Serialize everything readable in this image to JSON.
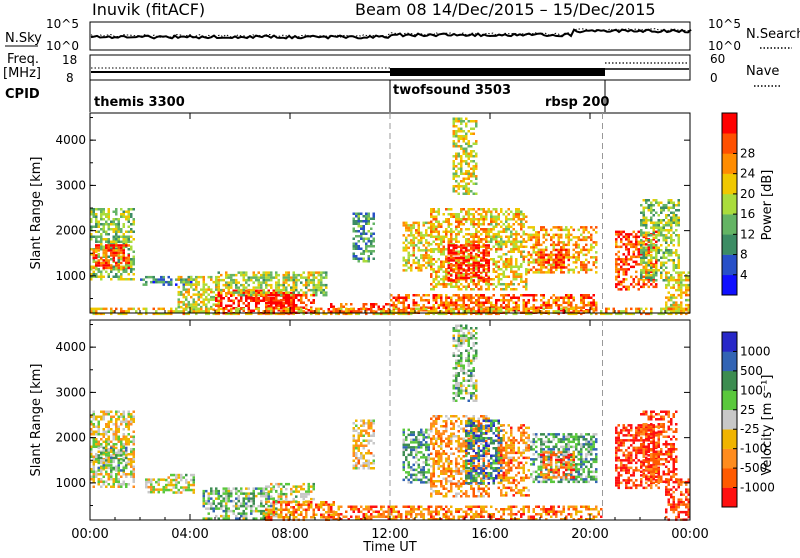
{
  "header": {
    "station": "Inuvik (fitACF)",
    "beam_date": "Beam 08  14/Dec/2015 – 15/Dec/2015"
  },
  "strip_labels": {
    "nsky": "N.Sky",
    "nsky_top": "10^5",
    "nsky_bot": "10^0",
    "nsearch": "N.Search",
    "nsearch_top": "10^5",
    "nsearch_bot": "10^0",
    "freq": "Freq.",
    "freq_unit": "[MHz]",
    "freq_top": "18",
    "freq_bot": "8",
    "nave": "Nave",
    "nave_top": "60",
    "nave_bot": "0",
    "cpid": "CPID"
  },
  "cpid_modes": [
    {
      "label": "themis 3300",
      "start_h": 0,
      "end_h": 12
    },
    {
      "label": "twofsound 3503",
      "start_h": 12,
      "end_h": 20.5
    },
    {
      "label": "rbsp 200",
      "start_h": 20.5,
      "end_h": 24
    }
  ],
  "colors": {
    "power": [
      "#1010ff",
      "#2850c8",
      "#3c8c64",
      "#64b464",
      "#aadc3c",
      "#f0c800",
      "#ff8c00",
      "#ff5000",
      "#ff0000"
    ],
    "velocity": [
      "#ff1010",
      "#ff5a00",
      "#ff8c1e",
      "#f0b400",
      "#c8c8c8",
      "#5ac83c",
      "#3c8c50",
      "#3264b4",
      "#2828c8"
    ]
  },
  "chart_data": [
    {
      "type": "heatmap",
      "title": "",
      "xlabel": "",
      "ylabel": "Slant Range [km]",
      "xlim": [
        0,
        24
      ],
      "ylim": [
        180,
        4600
      ],
      "yticks": [
        "1000",
        "2000",
        "3000",
        "4000"
      ],
      "colorbar_label": "Power [dB]",
      "colorbar_ticks": [
        "4",
        "8",
        "12",
        "16",
        "20",
        "24",
        "28"
      ],
      "regions": [
        {
          "x0": 0.0,
          "x1": 1.8,
          "y0": 900,
          "y1": 2500,
          "val": 0.45
        },
        {
          "x0": 0.1,
          "x1": 1.6,
          "y0": 1200,
          "y1": 1700,
          "val": 0.85
        },
        {
          "x0": 2.0,
          "x1": 4.2,
          "y0": 800,
          "y1": 1000,
          "val": 0.25
        },
        {
          "x0": 3.5,
          "x1": 5.2,
          "y0": 200,
          "y1": 1000,
          "val": 0.55
        },
        {
          "x0": 5.0,
          "x1": 8.2,
          "y0": 200,
          "y1": 700,
          "val": 0.95
        },
        {
          "x0": 5.0,
          "x1": 9.5,
          "y0": 600,
          "y1": 1100,
          "val": 0.5
        },
        {
          "x0": 7.0,
          "x1": 9.0,
          "y0": 200,
          "y1": 600,
          "val": 0.95
        },
        {
          "x0": 9.5,
          "x1": 12.0,
          "y0": 200,
          "y1": 400,
          "val": 0.85
        },
        {
          "x0": 12.5,
          "x1": 13.6,
          "y0": 1100,
          "y1": 2200,
          "val": 0.6
        },
        {
          "x0": 13.6,
          "x1": 16.0,
          "y0": 700,
          "y1": 2500,
          "val": 0.65
        },
        {
          "x0": 14.3,
          "x1": 16.0,
          "y0": 900,
          "y1": 1700,
          "val": 0.95
        },
        {
          "x0": 16.0,
          "x1": 17.5,
          "y0": 700,
          "y1": 2500,
          "val": 0.6
        },
        {
          "x0": 17.5,
          "x1": 20.3,
          "y0": 1100,
          "y1": 2100,
          "val": 0.7
        },
        {
          "x0": 18.0,
          "x1": 19.2,
          "y0": 1200,
          "y1": 1600,
          "val": 0.9
        },
        {
          "x0": 12.0,
          "x1": 20.3,
          "y0": 200,
          "y1": 600,
          "val": 0.8
        },
        {
          "x0": 21.0,
          "x1": 22.7,
          "y0": 700,
          "y1": 2000,
          "val": 0.85
        },
        {
          "x0": 22.0,
          "x1": 23.6,
          "y0": 900,
          "y1": 2700,
          "val": 0.45
        },
        {
          "x0": 23.0,
          "x1": 24.0,
          "y0": 200,
          "y1": 1100,
          "val": 0.6
        },
        {
          "x0": 0.0,
          "x1": 24.0,
          "y0": 180,
          "y1": 300,
          "val": 0.65
        },
        {
          "x0": 14.5,
          "x1": 15.4,
          "y0": 2800,
          "y1": 4500,
          "val": 0.55
        },
        {
          "x0": 10.5,
          "x1": 11.4,
          "y0": 1300,
          "y1": 2400,
          "val": 0.3
        }
      ]
    },
    {
      "type": "heatmap",
      "title": "",
      "xlabel": "Time UT",
      "ylabel": "Slant Range [km]",
      "xlim": [
        0,
        24
      ],
      "ylim": [
        180,
        4600
      ],
      "xticks": [
        "00:00",
        "04:00",
        "08:00",
        "12:00",
        "16:00",
        "20:00",
        "00:00"
      ],
      "yticks": [
        "1000",
        "2000",
        "3000",
        "4000"
      ],
      "colorbar_label": "Velocity [m s⁻¹]",
      "colorbar_ticks": [
        "-1000",
        "-500",
        "-100",
        "-25",
        "25",
        "100",
        "500",
        "1000"
      ],
      "regions": [
        {
          "x0": 0.0,
          "x1": 1.8,
          "y0": 900,
          "y1": 2600,
          "val": 0.45
        },
        {
          "x0": 0.3,
          "x1": 1.5,
          "y0": 1300,
          "y1": 1800,
          "val": 0.62
        },
        {
          "x0": 2.2,
          "x1": 3.0,
          "y0": 800,
          "y1": 1100,
          "val": 0.5
        },
        {
          "x0": 3.0,
          "x1": 4.2,
          "y0": 800,
          "y1": 1200,
          "val": 0.5
        },
        {
          "x0": 4.5,
          "x1": 7.5,
          "y0": 200,
          "y1": 900,
          "val": 0.62
        },
        {
          "x0": 7.0,
          "x1": 9.0,
          "y0": 600,
          "y1": 1000,
          "val": 0.5
        },
        {
          "x0": 7.0,
          "x1": 10.0,
          "y0": 200,
          "y1": 600,
          "val": 0.25
        },
        {
          "x0": 9.5,
          "x1": 12.0,
          "y0": 200,
          "y1": 500,
          "val": 0.2
        },
        {
          "x0": 12.5,
          "x1": 13.6,
          "y0": 1000,
          "y1": 2200,
          "val": 0.7
        },
        {
          "x0": 13.6,
          "x1": 16.0,
          "y0": 700,
          "y1": 2500,
          "val": 0.3
        },
        {
          "x0": 15.0,
          "x1": 16.5,
          "y0": 1000,
          "y1": 2400,
          "val": 0.78
        },
        {
          "x0": 16.3,
          "x1": 17.6,
          "y0": 700,
          "y1": 2300,
          "val": 0.28
        },
        {
          "x0": 17.6,
          "x1": 20.3,
          "y0": 1000,
          "y1": 2100,
          "val": 0.66
        },
        {
          "x0": 18.0,
          "x1": 19.4,
          "y0": 1100,
          "y1": 1700,
          "val": 0.2
        },
        {
          "x0": 12.0,
          "x1": 20.5,
          "y0": 200,
          "y1": 500,
          "val": 0.25
        },
        {
          "x0": 21.0,
          "x1": 22.8,
          "y0": 900,
          "y1": 2300,
          "val": 0.08
        },
        {
          "x0": 22.0,
          "x1": 23.5,
          "y0": 1000,
          "y1": 2600,
          "val": 0.15
        },
        {
          "x0": 23.0,
          "x1": 24.0,
          "y0": 200,
          "y1": 1100,
          "val": 0.1
        },
        {
          "x0": 14.5,
          "x1": 15.4,
          "y0": 2800,
          "y1": 4500,
          "val": 0.6
        },
        {
          "x0": 10.5,
          "x1": 11.4,
          "y0": 1300,
          "y1": 2400,
          "val": 0.4
        }
      ]
    }
  ]
}
